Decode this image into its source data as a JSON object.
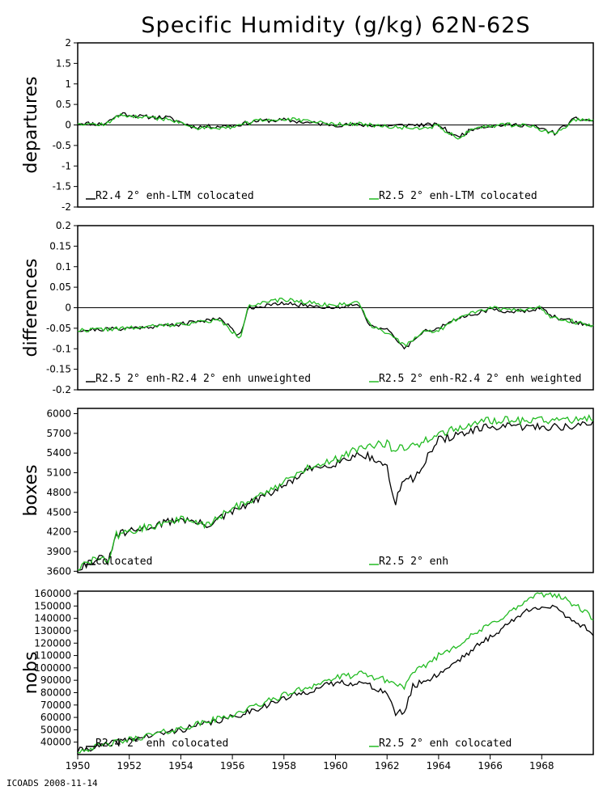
{
  "title": "Specific Humidity (g/kg) 62N-62S",
  "footer": "ICOADS 2008-11-14",
  "colors": {
    "black": "#000000",
    "green": "#22bb22"
  },
  "chart_data": [
    {
      "type": "line",
      "ylabel": "departures",
      "ylim": [
        -2,
        2
      ],
      "yticks": [
        -2,
        -1.5,
        -1,
        -0.5,
        0,
        0.5,
        1,
        1.5,
        2
      ],
      "ytick_labels": [
        "-2",
        "-1.5",
        "-1",
        "-0.5",
        "0",
        "0.5",
        "1",
        "1.5",
        "2"
      ],
      "zero_line": true,
      "xlim": [
        1950,
        1970
      ],
      "series": [
        {
          "name": "R2.4 2° enh-LTM colocated",
          "color": "#000000",
          "knots": [
            [
              1950,
              0.05
            ],
            [
              1951,
              0.02
            ],
            [
              1951.7,
              0.28
            ],
            [
              1952.5,
              0.2
            ],
            [
              1953.5,
              0.18
            ],
            [
              1954.5,
              -0.05
            ],
            [
              1956,
              -0.02
            ],
            [
              1957,
              0.1
            ],
            [
              1958,
              0.12
            ],
            [
              1959,
              0.05
            ],
            [
              1960,
              0.0
            ],
            [
              1961,
              0.0
            ],
            [
              1962,
              -0.02
            ],
            [
              1963,
              0.0
            ],
            [
              1964,
              0.0
            ],
            [
              1964.7,
              -0.3
            ],
            [
              1965.5,
              -0.05
            ],
            [
              1966.5,
              0.0
            ],
            [
              1967.5,
              0.0
            ],
            [
              1968.5,
              -0.2
            ],
            [
              1969.3,
              0.15
            ],
            [
              1970,
              0.1
            ]
          ],
          "noise": 0.05,
          "seed": 11
        },
        {
          "name": "R2.5 2° enh-LTM colocated",
          "color": "#22bb22",
          "knots": [
            [
              1950,
              0.05
            ],
            [
              1951,
              0.0
            ],
            [
              1951.7,
              0.25
            ],
            [
              1952.5,
              0.18
            ],
            [
              1953.5,
              0.15
            ],
            [
              1954.5,
              -0.07
            ],
            [
              1956,
              -0.05
            ],
            [
              1957,
              0.1
            ],
            [
              1958,
              0.15
            ],
            [
              1959,
              0.08
            ],
            [
              1960,
              0.02
            ],
            [
              1961,
              0.02
            ],
            [
              1962,
              -0.05
            ],
            [
              1963,
              -0.08
            ],
            [
              1964,
              -0.02
            ],
            [
              1964.7,
              -0.33
            ],
            [
              1965.5,
              -0.05
            ],
            [
              1966.5,
              0.0
            ],
            [
              1967.5,
              0.0
            ],
            [
              1968.5,
              -0.23
            ],
            [
              1969.3,
              0.12
            ],
            [
              1970,
              0.12
            ]
          ],
          "noise": 0.05,
          "seed": 12
        }
      ],
      "legend": [
        "R2.4 2° enh-LTM colocated",
        "R2.5 2° enh-LTM colocated"
      ]
    },
    {
      "type": "line",
      "ylabel": "differences",
      "ylim": [
        -0.2,
        0.2
      ],
      "yticks": [
        -0.2,
        -0.15,
        -0.1,
        -0.05,
        0,
        0.05,
        0.1,
        0.15,
        0.2
      ],
      "ytick_labels": [
        "-0.2",
        "-0.15",
        "-0.1",
        "-0.05",
        "0",
        "0.05",
        "0.1",
        "0.15",
        "0.2"
      ],
      "zero_line": true,
      "xlim": [
        1950,
        1970
      ],
      "series": [
        {
          "name": "R2.5 2° enh-R2.4 2° enh unweighted",
          "color": "#000000",
          "knots": [
            [
              1950,
              -0.055
            ],
            [
              1952,
              -0.05
            ],
            [
              1954,
              -0.04
            ],
            [
              1955.5,
              -0.025
            ],
            [
              1956.3,
              -0.07
            ],
            [
              1956.6,
              0.0
            ],
            [
              1958,
              0.01
            ],
            [
              1960,
              0.0
            ],
            [
              1960.9,
              0.01
            ],
            [
              1961.3,
              -0.04
            ],
            [
              1962,
              -0.055
            ],
            [
              1962.7,
              -0.1
            ],
            [
              1963.3,
              -0.06
            ],
            [
              1964,
              -0.05
            ],
            [
              1965,
              -0.02
            ],
            [
              1966,
              -0.005
            ],
            [
              1967,
              -0.01
            ],
            [
              1968,
              0.0
            ],
            [
              1968.3,
              -0.02
            ],
            [
              1970,
              -0.045
            ]
          ],
          "noise": 0.005,
          "seed": 21
        },
        {
          "name": "R2.5 2° enh-R2.4 2° enh weighted",
          "color": "#22bb22",
          "knots": [
            [
              1950,
              -0.055
            ],
            [
              1952,
              -0.05
            ],
            [
              1954,
              -0.04
            ],
            [
              1955.5,
              -0.03
            ],
            [
              1956.3,
              -0.075
            ],
            [
              1956.6,
              0.005
            ],
            [
              1958,
              0.02
            ],
            [
              1960,
              0.005
            ],
            [
              1960.9,
              0.015
            ],
            [
              1961.3,
              -0.04
            ],
            [
              1962,
              -0.06
            ],
            [
              1962.7,
              -0.095
            ],
            [
              1963.3,
              -0.06
            ],
            [
              1964,
              -0.055
            ],
            [
              1965,
              -0.015
            ],
            [
              1966,
              0.0
            ],
            [
              1967,
              -0.005
            ],
            [
              1968,
              0.0
            ],
            [
              1968.3,
              -0.02
            ],
            [
              1970,
              -0.045
            ]
          ],
          "noise": 0.005,
          "seed": 22
        }
      ],
      "legend": [
        "R2.5 2° enh-R2.4 2° enh unweighted",
        "R2.5 2° enh-R2.4 2° enh weighted"
      ]
    },
    {
      "type": "line",
      "ylabel": "boxes",
      "ylim": [
        3580,
        6080
      ],
      "yticks": [
        3600,
        3900,
        4200,
        4500,
        4800,
        5100,
        5400,
        5700,
        6000
      ],
      "ytick_labels": [
        "3600",
        "3900",
        "4200",
        "4500",
        "4800",
        "5100",
        "5400",
        "5700",
        "6000"
      ],
      "zero_line": false,
      "xlim": [
        1950,
        1970
      ],
      "series": [
        {
          "name": "colocated",
          "color": "#000000",
          "knots": [
            [
              1950,
              3650
            ],
            [
              1950.8,
              3800
            ],
            [
              1951.2,
              3750
            ],
            [
              1951.5,
              4150
            ],
            [
              1952,
              4200
            ],
            [
              1953,
              4300
            ],
            [
              1954,
              4400
            ],
            [
              1955,
              4300
            ],
            [
              1956,
              4500
            ],
            [
              1957,
              4700
            ],
            [
              1958,
              4900
            ],
            [
              1959,
              5150
            ],
            [
              1960,
              5250
            ],
            [
              1961,
              5400
            ],
            [
              1962,
              5200
            ],
            [
              1962.3,
              4580
            ],
            [
              1962.6,
              5000
            ],
            [
              1963,
              5000
            ],
            [
              1964,
              5600
            ],
            [
              1965,
              5700
            ],
            [
              1966,
              5800
            ],
            [
              1967,
              5800
            ],
            [
              1968,
              5800
            ],
            [
              1969,
              5800
            ],
            [
              1970,
              5850
            ]
          ],
          "noise": 60,
          "seed": 31
        },
        {
          "name": "R2.5 2° enh",
          "color": "#22bb22",
          "knots": [
            [
              1950,
              3650
            ],
            [
              1950.8,
              3800
            ],
            [
              1951.2,
              3750
            ],
            [
              1951.5,
              4150
            ],
            [
              1952,
              4200
            ],
            [
              1953,
              4300
            ],
            [
              1954,
              4400
            ],
            [
              1955,
              4300
            ],
            [
              1956,
              4550
            ],
            [
              1957,
              4750
            ],
            [
              1958,
              4950
            ],
            [
              1959,
              5200
            ],
            [
              1960,
              5300
            ],
            [
              1961,
              5500
            ],
            [
              1962,
              5550
            ],
            [
              1962.3,
              5400
            ],
            [
              1962.6,
              5500
            ],
            [
              1963,
              5500
            ],
            [
              1964,
              5700
            ],
            [
              1965,
              5800
            ],
            [
              1966,
              5900
            ],
            [
              1967,
              5900
            ],
            [
              1968,
              5900
            ],
            [
              1969,
              5900
            ],
            [
              1970,
              5950
            ]
          ],
          "noise": 60,
          "seed": 32
        }
      ],
      "legend": [
        "colocated",
        "R2.5 2° enh"
      ]
    },
    {
      "type": "line",
      "ylabel": "nobs",
      "ylim": [
        30000,
        162000
      ],
      "yticks": [
        40000,
        50000,
        60000,
        70000,
        80000,
        90000,
        100000,
        110000,
        120000,
        130000,
        140000,
        150000,
        160000
      ],
      "ytick_labels": [
        "40000",
        "50000",
        "60000",
        "70000",
        "80000",
        "90000",
        "100000",
        "110000",
        "120000",
        "130000",
        "140000",
        "150000",
        "160000"
      ],
      "xticks": [
        1950,
        1952,
        1954,
        1956,
        1958,
        1960,
        1962,
        1964,
        1966,
        1968
      ],
      "xtick_labels": [
        "1950",
        "1952",
        "1954",
        "1956",
        "1958",
        "1960",
        "1962",
        "1964",
        "1966",
        "1968"
      ],
      "zero_line": false,
      "xlim": [
        1950,
        1970
      ],
      "series": [
        {
          "name": "R2.4 2° enh colocated",
          "color": "#000000",
          "knots": [
            [
              1950,
              33000
            ],
            [
              1952,
              42000
            ],
            [
              1954,
              50000
            ],
            [
              1956,
              60000
            ],
            [
              1958,
              75000
            ],
            [
              1960,
              88000
            ],
            [
              1961,
              88000
            ],
            [
              1962,
              80000
            ],
            [
              1962.3,
              63000
            ],
            [
              1962.7,
              65000
            ],
            [
              1963,
              85000
            ],
            [
              1964,
              95000
            ],
            [
              1965,
              110000
            ],
            [
              1966,
              125000
            ],
            [
              1967,
              140000
            ],
            [
              1967.7,
              150000
            ],
            [
              1968.5,
              148000
            ],
            [
              1969.5,
              135000
            ],
            [
              1970,
              128000
            ]
          ],
          "noise": 2500,
          "seed": 41
        },
        {
          "name": "R2.5 2° enh colocated",
          "color": "#22bb22",
          "knots": [
            [
              1950,
              33000
            ],
            [
              1952,
              42000
            ],
            [
              1954,
              51000
            ],
            [
              1956,
              62000
            ],
            [
              1958,
              78000
            ],
            [
              1960,
              92000
            ],
            [
              1961,
              95000
            ],
            [
              1962,
              90000
            ],
            [
              1962.3,
              87000
            ],
            [
              1962.7,
              85000
            ],
            [
              1963,
              95000
            ],
            [
              1964,
              110000
            ],
            [
              1965,
              122000
            ],
            [
              1966,
              135000
            ],
            [
              1967,
              148000
            ],
            [
              1967.7,
              158000
            ],
            [
              1968.5,
              160000
            ],
            [
              1969.5,
              148000
            ],
            [
              1970,
              140000
            ]
          ],
          "noise": 2500,
          "seed": 42
        }
      ],
      "legend": [
        "R2.4 2° enh colocated",
        "R2.5 2° enh colocated"
      ]
    }
  ]
}
